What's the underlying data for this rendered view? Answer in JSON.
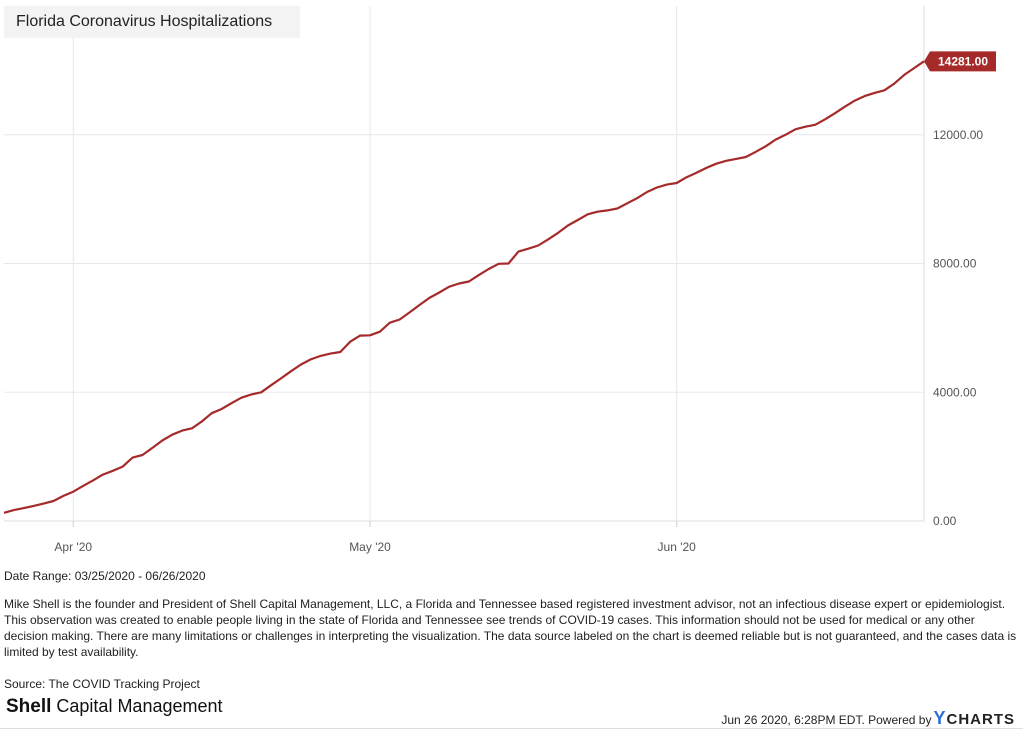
{
  "chart_data": {
    "type": "line",
    "title": "Florida Coronavirus Hospitalizations",
    "x_ticks": [
      {
        "label": "Apr '20",
        "date": "2020-04-01"
      },
      {
        "label": "May '20",
        "date": "2020-05-01"
      },
      {
        "label": "Jun '20",
        "date": "2020-06-01"
      }
    ],
    "y_ticks": [
      {
        "value": 0,
        "label": "0.00"
      },
      {
        "value": 4000,
        "label": "4000.00"
      },
      {
        "value": 8000,
        "label": "8000.00"
      },
      {
        "value": 12000,
        "label": "12000.00"
      }
    ],
    "ylim": [
      0,
      16000
    ],
    "xlim": [
      "2020-03-25",
      "2020-06-26"
    ],
    "grid": true,
    "series": [
      {
        "color": "#a52a2a",
        "last_value_label": "14281.00",
        "points": [
          [
            "2020-03-25",
            255
          ],
          [
            "2020-03-26",
            340
          ],
          [
            "2020-03-27",
            400
          ],
          [
            "2020-03-28",
            470
          ],
          [
            "2020-03-29",
            540
          ],
          [
            "2020-03-30",
            620
          ],
          [
            "2020-03-31",
            780
          ],
          [
            "2020-04-01",
            910
          ],
          [
            "2020-04-02",
            1090
          ],
          [
            "2020-04-03",
            1260
          ],
          [
            "2020-04-04",
            1440
          ],
          [
            "2020-04-05",
            1560
          ],
          [
            "2020-04-06",
            1690
          ],
          [
            "2020-04-07",
            1970
          ],
          [
            "2020-04-08",
            2050
          ],
          [
            "2020-04-09",
            2270
          ],
          [
            "2020-04-10",
            2500
          ],
          [
            "2020-04-11",
            2680
          ],
          [
            "2020-04-12",
            2810
          ],
          [
            "2020-04-13",
            2880
          ],
          [
            "2020-04-14",
            3090
          ],
          [
            "2020-04-15",
            3350
          ],
          [
            "2020-04-16",
            3480
          ],
          [
            "2020-04-17",
            3660
          ],
          [
            "2020-04-18",
            3830
          ],
          [
            "2020-04-19",
            3930
          ],
          [
            "2020-04-20",
            4000
          ],
          [
            "2020-04-21",
            4220
          ],
          [
            "2020-04-22",
            4430
          ],
          [
            "2020-04-23",
            4650
          ],
          [
            "2020-04-24",
            4860
          ],
          [
            "2020-04-25",
            5020
          ],
          [
            "2020-04-26",
            5130
          ],
          [
            "2020-04-27",
            5200
          ],
          [
            "2020-04-28",
            5250
          ],
          [
            "2020-04-29",
            5570
          ],
          [
            "2020-04-30",
            5760
          ],
          [
            "2020-05-01",
            5770
          ],
          [
            "2020-05-02",
            5880
          ],
          [
            "2020-05-03",
            6160
          ],
          [
            "2020-05-04",
            6260
          ],
          [
            "2020-05-05",
            6480
          ],
          [
            "2020-05-06",
            6710
          ],
          [
            "2020-05-07",
            6930
          ],
          [
            "2020-05-08",
            7100
          ],
          [
            "2020-05-09",
            7280
          ],
          [
            "2020-05-10",
            7380
          ],
          [
            "2020-05-11",
            7440
          ],
          [
            "2020-05-12",
            7640
          ],
          [
            "2020-05-13",
            7830
          ],
          [
            "2020-05-14",
            7990
          ],
          [
            "2020-05-15",
            8000
          ],
          [
            "2020-05-16",
            8370
          ],
          [
            "2020-05-17",
            8460
          ],
          [
            "2020-05-18",
            8560
          ],
          [
            "2020-05-19",
            8750
          ],
          [
            "2020-05-20",
            8950
          ],
          [
            "2020-05-21",
            9180
          ],
          [
            "2020-05-22",
            9350
          ],
          [
            "2020-05-23",
            9530
          ],
          [
            "2020-05-24",
            9610
          ],
          [
            "2020-05-25",
            9650
          ],
          [
            "2020-05-26",
            9710
          ],
          [
            "2020-05-27",
            9870
          ],
          [
            "2020-05-28",
            10030
          ],
          [
            "2020-05-29",
            10220
          ],
          [
            "2020-05-30",
            10360
          ],
          [
            "2020-05-31",
            10450
          ],
          [
            "2020-06-01",
            10500
          ],
          [
            "2020-06-02",
            10680
          ],
          [
            "2020-06-03",
            10820
          ],
          [
            "2020-06-04",
            10970
          ],
          [
            "2020-06-05",
            11100
          ],
          [
            "2020-06-06",
            11190
          ],
          [
            "2020-06-07",
            11250
          ],
          [
            "2020-06-08",
            11310
          ],
          [
            "2020-06-09",
            11470
          ],
          [
            "2020-06-10",
            11640
          ],
          [
            "2020-06-11",
            11850
          ],
          [
            "2020-06-12",
            12000
          ],
          [
            "2020-06-13",
            12170
          ],
          [
            "2020-06-14",
            12250
          ],
          [
            "2020-06-15",
            12310
          ],
          [
            "2020-06-16",
            12480
          ],
          [
            "2020-06-17",
            12670
          ],
          [
            "2020-06-18",
            12870
          ],
          [
            "2020-06-19",
            13060
          ],
          [
            "2020-06-20",
            13200
          ],
          [
            "2020-06-21",
            13300
          ],
          [
            "2020-06-22",
            13380
          ],
          [
            "2020-06-23",
            13590
          ],
          [
            "2020-06-24",
            13860
          ],
          [
            "2020-06-25",
            14070
          ],
          [
            "2020-06-26",
            14281
          ]
        ]
      }
    ]
  },
  "meta": {
    "date_range": "Date Range: 03/25/2020 - 06/26/2020",
    "disclaimer": "Mike Shell is the founder and President of Shell Capital Management, LLC, a Florida and Tennessee based registered investment advisor, not an infectious disease expert or epidemiologist. This observation was created to enable people living in the state of Florida and Tennessee see trends of COVID-19 cases. This information should not be used for medical or any other decision making. There are many limitations or challenges in interpreting the visualization. The data source labeled on the chart is deemed reliable but is not guaranteed, and the cases data is limited by test availability.",
    "source": "Source: The COVID Tracking Project",
    "brand_bold": "Shell",
    "brand_rest": " Capital Management",
    "timestamp": "Jun 26 2020, 6:28PM EDT. Powered by",
    "powered_logo_y": "Y",
    "powered_logo_rest": "CHARTS"
  },
  "colors": {
    "series": "#a52a2a",
    "grid": "#e8e8e8",
    "axis_text": "#555555",
    "logo_y": "#2d6fd6"
  }
}
